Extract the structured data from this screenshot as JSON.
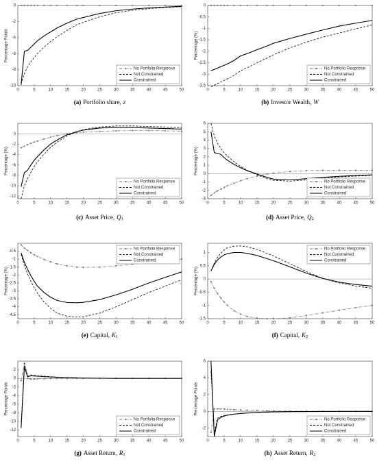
{
  "chart_data": [
    {
      "type": "line",
      "caption": {
        "label": "(a)",
        "text": "Portfolio share,",
        "symbol": "z"
      },
      "ylabel": "Percentage Points",
      "x": [
        1,
        2,
        3,
        4,
        5,
        6,
        8,
        10,
        12,
        15,
        18,
        20,
        25,
        30,
        35,
        40,
        45,
        50
      ],
      "xlim": [
        0,
        50
      ],
      "xticks": [
        0,
        5,
        10,
        15,
        20,
        25,
        30,
        35,
        40,
        45,
        50
      ],
      "ylim": [
        -10,
        0
      ],
      "yticks": [
        -10,
        -8,
        -6,
        -4,
        -2,
        0
      ],
      "zero_line": true,
      "legend": "lower right",
      "series": [
        {
          "name": "No Portfolio Response",
          "color": "#777777",
          "dash": "dashdot",
          "marker": "circle",
          "values": [
            0,
            0,
            0,
            0,
            0,
            0,
            0,
            0,
            0,
            0,
            0,
            0,
            0,
            0,
            0,
            0,
            0,
            0
          ]
        },
        {
          "name": "Not Constrained",
          "color": "#000000",
          "dash": "dashed",
          "values": [
            -9.8,
            -8.5,
            -7.6,
            -7.0,
            -6.5,
            -6.0,
            -5.2,
            -4.5,
            -3.9,
            -3.1,
            -2.4,
            -2.1,
            -1.4,
            -0.9,
            -0.6,
            -0.4,
            -0.25,
            -0.15
          ]
        },
        {
          "name": "Constrained",
          "color": "#000000",
          "dash": "solid",
          "values": [
            -9.9,
            -5.7,
            -5.6,
            -5.2,
            -4.8,
            -4.4,
            -3.8,
            -3.3,
            -2.8,
            -2.2,
            -1.7,
            -1.5,
            -1.0,
            -0.65,
            -0.45,
            -0.3,
            -0.2,
            -0.1
          ]
        }
      ]
    },
    {
      "type": "line",
      "caption": {
        "label": "(b)",
        "text": "Investor Wealth,",
        "symbol": "W"
      },
      "ylabel": "Percentage (%)",
      "x": [
        1,
        2,
        3,
        4,
        5,
        6,
        8,
        10,
        12,
        15,
        18,
        20,
        25,
        30,
        35,
        40,
        45,
        50
      ],
      "xlim": [
        0,
        50
      ],
      "xticks": [
        0,
        5,
        10,
        15,
        20,
        25,
        30,
        35,
        40,
        45,
        50
      ],
      "ylim": [
        -3.5,
        0
      ],
      "yticks": [
        -3.5,
        -3,
        -2.5,
        -2,
        -1.5,
        -1,
        -0.5,
        0
      ],
      "zero_line": true,
      "legend": "lower right",
      "series": [
        {
          "name": "No Portfolio Response",
          "color": "#777777",
          "dash": "dashdot",
          "marker": "circle",
          "values": [
            0,
            0,
            0,
            0,
            0,
            0,
            0,
            0,
            0,
            0,
            0,
            0,
            0,
            0,
            0,
            0,
            0,
            0
          ]
        },
        {
          "name": "Not Constrained",
          "color": "#000000",
          "dash": "dashed",
          "values": [
            -3.55,
            -3.48,
            -3.41,
            -3.34,
            -3.27,
            -3.2,
            -3.05,
            -2.85,
            -2.72,
            -2.5,
            -2.3,
            -2.15,
            -1.85,
            -1.6,
            -1.38,
            -1.2,
            -1.02,
            -0.85
          ]
        },
        {
          "name": "Constrained",
          "color": "#000000",
          "dash": "solid",
          "values": [
            -2.85,
            -2.79,
            -2.73,
            -2.67,
            -2.61,
            -2.55,
            -2.4,
            -2.2,
            -2.1,
            -1.93,
            -1.77,
            -1.65,
            -1.44,
            -1.25,
            -1.07,
            -0.9,
            -0.77,
            -0.65
          ]
        }
      ]
    },
    {
      "type": "line",
      "caption": {
        "label": "(c)",
        "text": "Asset Price,",
        "symbol": "Q",
        "subscript": "1"
      },
      "ylabel": "Percentage (%)",
      "x": [
        1,
        2,
        3,
        4,
        5,
        6,
        8,
        10,
        12,
        15,
        18,
        20,
        25,
        30,
        35,
        40,
        45,
        50
      ],
      "xlim": [
        0,
        50
      ],
      "xticks": [
        0,
        5,
        10,
        15,
        20,
        25,
        30,
        35,
        40,
        45,
        50
      ],
      "ylim": [
        -12.5,
        2
      ],
      "yticks": [
        -12,
        -10,
        -8,
        -6,
        -4,
        -2,
        0
      ],
      "zero_line": true,
      "legend": "lower right",
      "series": [
        {
          "name": "No Portfolio Response",
          "color": "#777777",
          "dash": "dashdot",
          "marker": "circle",
          "values": [
            -2.7,
            -2.4,
            -2.1,
            -1.85,
            -1.6,
            -1.4,
            -1.0,
            -0.65,
            -0.35,
            0.0,
            0.2,
            0.3,
            0.45,
            0.55,
            0.6,
            0.6,
            0.55,
            0.5
          ]
        },
        {
          "name": "Not Constrained",
          "color": "#000000",
          "dash": "dashed",
          "values": [
            -12.5,
            -10,
            -8.6,
            -7.4,
            -6.3,
            -5.4,
            -3.9,
            -2.6,
            -1.6,
            -0.4,
            0.4,
            0.8,
            1.3,
            1.5,
            1.5,
            1.4,
            1.3,
            1.2
          ]
        },
        {
          "name": "Constrained",
          "color": "#000000",
          "dash": "solid",
          "values": [
            -10.2,
            -7.5,
            -7.0,
            -6.0,
            -5.1,
            -4.4,
            -3.1,
            -2.0,
            -1.2,
            -0.2,
            0.4,
            0.7,
            1.1,
            1.2,
            1.2,
            1.1,
            1.0,
            0.9
          ]
        }
      ]
    },
    {
      "type": "line",
      "caption": {
        "label": "(d)",
        "text": "Asset Price,",
        "symbol": "Q",
        "subscript": "2"
      },
      "ylabel": "Percentage (%)",
      "x": [
        1,
        2,
        3,
        4,
        5,
        6,
        8,
        10,
        12,
        15,
        18,
        20,
        25,
        30,
        35,
        40,
        45,
        50
      ],
      "xlim": [
        0,
        50
      ],
      "xticks": [
        0,
        5,
        10,
        15,
        20,
        25,
        30,
        35,
        40,
        45,
        50
      ],
      "ylim": [
        -3,
        6
      ],
      "yticks": [
        -3,
        -2,
        -1,
        0,
        1,
        2,
        3,
        4,
        5,
        6
      ],
      "zero_line": true,
      "legend": "lower right",
      "series": [
        {
          "name": "No Portfolio Response",
          "color": "#777777",
          "dash": "dashdot",
          "marker": "circle",
          "values": [
            -2.6,
            -2.3,
            -2.05,
            -1.85,
            -1.65,
            -1.45,
            -1.15,
            -0.85,
            -0.6,
            -0.3,
            -0.05,
            0.05,
            0.25,
            0.35,
            0.4,
            0.4,
            0.4,
            0.4
          ]
        },
        {
          "name": "Not Constrained",
          "color": "#000000",
          "dash": "dashed",
          "values": [
            6,
            4.5,
            3.6,
            3.0,
            2.5,
            2.1,
            1.4,
            0.85,
            0.4,
            -0.15,
            -0.6,
            -0.8,
            -0.9,
            -0.75,
            -0.55,
            -0.4,
            -0.3,
            -0.2
          ]
        },
        {
          "name": "Constrained",
          "color": "#000000",
          "dash": "solid",
          "values": [
            5,
            2.5,
            2.4,
            2.3,
            1.9,
            1.6,
            1.1,
            0.7,
            0.35,
            -0.05,
            -0.45,
            -0.65,
            -0.75,
            -0.6,
            -0.45,
            -0.32,
            -0.22,
            -0.15
          ]
        }
      ]
    },
    {
      "type": "line",
      "caption": {
        "label": "(e)",
        "text": "Capital,",
        "symbol": "K",
        "subscript": "1"
      },
      "ylabel": "Percentage (%)",
      "x": [
        1,
        2,
        3,
        4,
        5,
        6,
        8,
        10,
        12,
        15,
        18,
        20,
        25,
        30,
        35,
        40,
        45,
        50
      ],
      "xlim": [
        0,
        50
      ],
      "xticks": [
        0,
        5,
        10,
        15,
        20,
        25,
        30,
        35,
        40,
        45,
        50
      ],
      "ylim": [
        -4.75,
        0
      ],
      "yticks": [
        -4.5,
        -4,
        -3.5,
        -3,
        -2.5,
        -2,
        -1.5,
        -1,
        -0.5
      ],
      "zero_line": false,
      "legend": "upper right",
      "series": [
        {
          "name": "No Portfolio Response",
          "color": "#777777",
          "dash": "dashdot",
          "marker": "circle",
          "values": [
            -0.1,
            -0.3,
            -0.45,
            -0.6,
            -0.72,
            -0.83,
            -1.02,
            -1.17,
            -1.3,
            -1.42,
            -1.5,
            -1.52,
            -1.5,
            -1.42,
            -1.32,
            -1.22,
            -1.1,
            -1.0
          ]
        },
        {
          "name": "Not Constrained",
          "color": "#000000",
          "dash": "dashed",
          "values": [
            -0.7,
            -1.4,
            -1.95,
            -2.4,
            -2.8,
            -3.15,
            -3.7,
            -4.1,
            -4.4,
            -4.6,
            -4.65,
            -4.62,
            -4.4,
            -4.0,
            -3.55,
            -3.1,
            -2.7,
            -2.3
          ]
        },
        {
          "name": "Constrained",
          "color": "#000000",
          "dash": "solid",
          "values": [
            -0.6,
            -1.2,
            -1.65,
            -2.05,
            -2.4,
            -2.7,
            -3.1,
            -3.4,
            -3.6,
            -3.73,
            -3.75,
            -3.72,
            -3.55,
            -3.25,
            -2.9,
            -2.5,
            -2.15,
            -1.8
          ]
        }
      ]
    },
    {
      "type": "line",
      "caption": {
        "label": "(f)",
        "text": "Capital,",
        "symbol": "K",
        "subscript": "2"
      },
      "ylabel": "Percentage (%)",
      "x": [
        1,
        2,
        3,
        4,
        5,
        6,
        8,
        10,
        12,
        15,
        18,
        20,
        25,
        30,
        35,
        40,
        45,
        50
      ],
      "xlim": [
        0,
        50
      ],
      "xticks": [
        0,
        5,
        10,
        15,
        20,
        25,
        30,
        35,
        40,
        45,
        50
      ],
      "ylim": [
        -1.5,
        1.35
      ],
      "yticks": [
        -1.5,
        -1,
        -0.5,
        0,
        0.5,
        1
      ],
      "zero_line": true,
      "legend": "upper right",
      "series": [
        {
          "name": "No Portfolio Response",
          "color": "#777777",
          "dash": "dashdot",
          "marker": "circle",
          "values": [
            -0.1,
            -0.35,
            -0.55,
            -0.72,
            -0.87,
            -1.0,
            -1.2,
            -1.33,
            -1.42,
            -1.48,
            -1.5,
            -1.5,
            -1.47,
            -1.38,
            -1.28,
            -1.18,
            -1.08,
            -1.0
          ]
        },
        {
          "name": "Not Constrained",
          "color": "#000000",
          "dash": "dashed",
          "values": [
            0.3,
            0.6,
            0.82,
            0.98,
            1.1,
            1.18,
            1.24,
            1.25,
            1.22,
            1.12,
            0.97,
            0.87,
            0.58,
            0.28,
            0.02,
            -0.15,
            -0.27,
            -0.35
          ]
        },
        {
          "name": "Constrained",
          "color": "#000000",
          "dash": "solid",
          "values": [
            0.3,
            0.55,
            0.72,
            0.83,
            0.91,
            0.96,
            1.0,
            1.0,
            0.97,
            0.89,
            0.77,
            0.69,
            0.46,
            0.22,
            0.02,
            -0.12,
            -0.21,
            -0.27
          ]
        }
      ]
    },
    {
      "type": "line",
      "caption": {
        "label": "(g)",
        "text": "Asset Return,",
        "symbol": "R",
        "subscript": "1"
      },
      "ylabel": "Percentage Points",
      "x": [
        1,
        2,
        3,
        4,
        5,
        6,
        8,
        10,
        12,
        15,
        18,
        20,
        25,
        30,
        35,
        40,
        45,
        50
      ],
      "xlim": [
        0,
        50
      ],
      "xticks": [
        0,
        5,
        10,
        15,
        20,
        25,
        30,
        35,
        40,
        45,
        50
      ],
      "ylim": [
        -13.5,
        4
      ],
      "yticks": [
        -12,
        -10,
        -8,
        -6,
        -4,
        -2,
        0,
        2
      ],
      "zero_line": true,
      "legend": "lower right",
      "series": [
        {
          "name": "No Portfolio Response",
          "color": "#777777",
          "dash": "dashdot",
          "marker": "circle",
          "values": [
            -0.5,
            3.5,
            0,
            -0.2,
            -0.15,
            -0.1,
            -0.08,
            -0.05,
            -0.03,
            -0.02,
            0,
            0,
            0,
            0,
            0,
            0,
            0,
            0
          ]
        },
        {
          "name": "Not Constrained",
          "color": "#000000",
          "dash": "dashed",
          "values": [
            -11,
            3.5,
            0.5,
            0.8,
            0.7,
            0.6,
            0.5,
            0.4,
            0.3,
            0.2,
            0.15,
            0.1,
            0.05,
            0,
            0,
            0,
            0,
            0
          ]
        },
        {
          "name": "Constrained",
          "color": "#000000",
          "dash": "solid",
          "values": [
            -11.5,
            2.6,
            0.4,
            0.6,
            0.55,
            0.5,
            0.4,
            0.32,
            0.25,
            0.17,
            0.12,
            0.08,
            0.04,
            0,
            0,
            0,
            0,
            0
          ]
        }
      ]
    },
    {
      "type": "line",
      "caption": {
        "label": "(h)",
        "text": "Asset Return,",
        "symbol": "R",
        "subscript": "2"
      },
      "ylabel": "Percentage Points",
      "x": [
        1,
        2,
        3,
        4,
        5,
        6,
        8,
        10,
        12,
        15,
        18,
        20,
        25,
        30,
        35,
        40,
        45,
        50
      ],
      "xlim": [
        0,
        50
      ],
      "xticks": [
        0,
        5,
        10,
        15,
        20,
        25,
        30,
        35,
        40,
        45,
        50
      ],
      "ylim": [
        -3,
        6
      ],
      "yticks": [
        -2,
        0,
        2,
        4,
        6
      ],
      "zero_line": true,
      "legend": "lower right",
      "series": [
        {
          "name": "No Portfolio Response",
          "color": "#777777",
          "dash": "dashdot",
          "marker": "circle",
          "values": [
            -2.5,
            0.3,
            0.3,
            0.3,
            0.28,
            0.25,
            0.2,
            0.17,
            0.14,
            0.1,
            0.07,
            0.06,
            0.03,
            0.02,
            0.01,
            0,
            0,
            0
          ]
        },
        {
          "name": "Not Constrained",
          "color": "#000000",
          "dash": "dashed",
          "values": [
            4.8,
            -2.5,
            -0.8,
            -0.6,
            -0.5,
            -0.42,
            -0.32,
            -0.24,
            -0.18,
            -0.12,
            -0.08,
            -0.06,
            -0.03,
            -0.02,
            -0.01,
            0,
            0,
            0
          ]
        },
        {
          "name": "Constrained",
          "color": "#000000",
          "dash": "solid",
          "values": [
            6,
            -3,
            -1,
            -0.7,
            -0.55,
            -0.45,
            -0.33,
            -0.25,
            -0.19,
            -0.12,
            -0.08,
            -0.06,
            -0.03,
            -0.02,
            -0.01,
            0,
            0,
            0
          ]
        }
      ]
    }
  ]
}
